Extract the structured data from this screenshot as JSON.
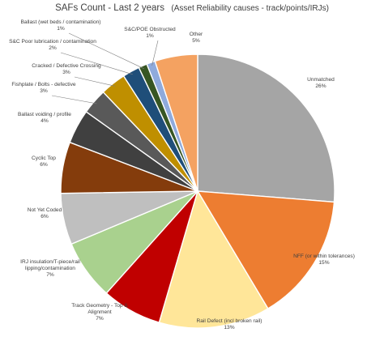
{
  "chart_data": {
    "type": "pie",
    "title": "SAFs Count - Last 2 years",
    "subtitle": "(Asset Reliability causes - track/points/IRJs)",
    "slices": [
      {
        "label": "Unmatched",
        "value": 26,
        "pct_label": "26%",
        "color": "#a5a5a5"
      },
      {
        "label": "NFF (or within tolerances)",
        "value": 15,
        "pct_label": "15%",
        "color": "#ed7d31"
      },
      {
        "label": "Rail Defect (incl broken rail)",
        "value": 13,
        "pct_label": "13%",
        "color": "#ffe699"
      },
      {
        "label": "Track Geometry - Top & Alignment",
        "value": 7,
        "pct_label": "7%",
        "color": "#c00000"
      },
      {
        "label": "IRJ insulation/T-piece/rail lipping/contamination",
        "value": 7,
        "pct_label": "7%",
        "color": "#a9d18e"
      },
      {
        "label": "Not Yet Coded",
        "value": 6,
        "pct_label": "6%",
        "color": "#bfbfbf"
      },
      {
        "label": "Cyclic Top",
        "value": 6,
        "pct_label": "6%",
        "color": "#843c0c"
      },
      {
        "label": "Ballast voiding / profile",
        "value": 4,
        "pct_label": "4%",
        "color": "#404040"
      },
      {
        "label": "Fishplate / Bolts - defective",
        "value": 3,
        "pct_label": "3%",
        "color": "#595959"
      },
      {
        "label": "Cracked / Defective Crossing",
        "value": 3,
        "pct_label": "3%",
        "color": "#bf8f00"
      },
      {
        "label": "S&C Poor lubrication / contamination",
        "value": 2,
        "pct_label": "2%",
        "color": "#1f4e79"
      },
      {
        "label": "Ballast (wet beds / contamination)",
        "value": 1,
        "pct_label": "1%",
        "color": "#375623"
      },
      {
        "label": "S&C/POE Obstructed",
        "value": 1,
        "pct_label": "1%",
        "color": "#8faadc"
      },
      {
        "label": "Other",
        "value": 5,
        "pct_label": "5%",
        "color": "#f4a261"
      }
    ]
  }
}
